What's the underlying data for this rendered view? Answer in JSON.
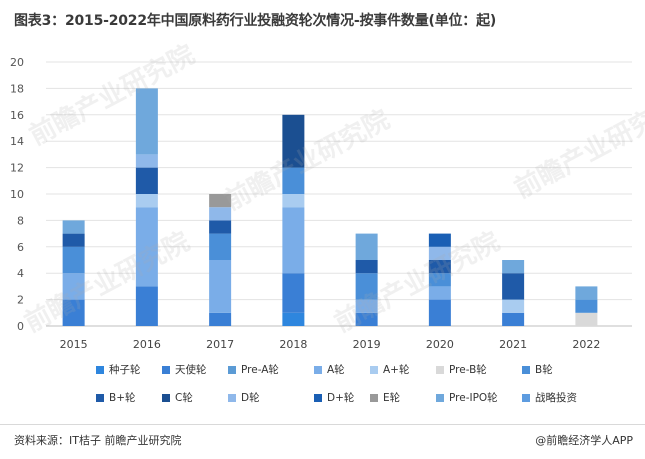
{
  "title": "图表3：2015-2022年中国原料药行业投融资轮次情况-按事件数量(单位：起)",
  "source": "资料来源：IT桔子 前瞻产业研究院",
  "brand": "@前瞻经济学人APP",
  "watermark": "前瞻产业研究院",
  "chart_data": {
    "type": "bar",
    "stacked": true,
    "categories": [
      "2015",
      "2016",
      "2017",
      "2018",
      "2019",
      "2020",
      "2021",
      "2022"
    ],
    "ylim": [
      0,
      20
    ],
    "yticks": [
      0,
      2,
      4,
      6,
      8,
      10,
      12,
      14,
      16,
      18,
      20
    ],
    "grid": true,
    "legend_position": "bottom",
    "series": [
      {
        "name": "种子轮",
        "color": "#2e86de",
        "values": [
          0,
          0,
          0,
          1,
          0,
          0,
          0,
          0
        ]
      },
      {
        "name": "天使轮",
        "color": "#3a7fd5",
        "values": [
          2,
          3,
          1,
          3,
          1,
          2,
          1,
          0
        ]
      },
      {
        "name": "Pre-A轮",
        "color": "#5b9bd5",
        "values": [
          0,
          0,
          0,
          0,
          0,
          0,
          0,
          0
        ]
      },
      {
        "name": "A轮",
        "color": "#7aade8",
        "values": [
          2,
          6,
          4,
          5,
          1,
          1,
          0,
          0
        ]
      },
      {
        "name": "A+轮",
        "color": "#a9ccf0",
        "values": [
          0,
          1,
          0,
          1,
          0,
          0,
          1,
          0
        ]
      },
      {
        "name": "Pre-B轮",
        "color": "#d9d9d9",
        "values": [
          0,
          0,
          0,
          0,
          0,
          0,
          0,
          1
        ]
      },
      {
        "name": "B轮",
        "color": "#4a8fd8",
        "values": [
          2,
          0,
          2,
          2,
          2,
          1,
          0,
          1
        ]
      },
      {
        "name": "B+轮",
        "color": "#1f5aa8",
        "values": [
          1,
          2,
          1,
          0,
          1,
          1,
          2,
          0
        ]
      },
      {
        "name": "C轮",
        "color": "#1b4f91",
        "values": [
          0,
          0,
          0,
          4,
          0,
          0,
          0,
          0
        ]
      },
      {
        "name": "D轮",
        "color": "#8fb8ea",
        "values": [
          0,
          1,
          1,
          0,
          0,
          1,
          0,
          0
        ]
      },
      {
        "name": "D+轮",
        "color": "#1a5fb4",
        "values": [
          0,
          0,
          0,
          0,
          0,
          1,
          0,
          0
        ]
      },
      {
        "name": "E轮",
        "color": "#999999",
        "values": [
          0,
          0,
          1,
          0,
          0,
          0,
          0,
          0
        ]
      },
      {
        "name": "Pre-IPO轮",
        "color": "#6fa8dc",
        "values": [
          1,
          5,
          0,
          0,
          2,
          0,
          1,
          1
        ]
      },
      {
        "name": "战略投资",
        "color": "#5d9ce0",
        "values": [
          0,
          0,
          0,
          0,
          0,
          0,
          0,
          0
        ]
      }
    ]
  }
}
